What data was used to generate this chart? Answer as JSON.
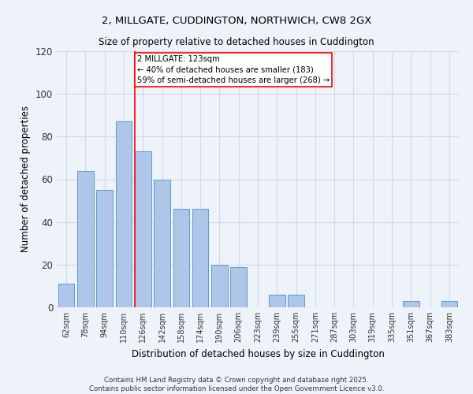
{
  "title_line1": "2, MILLGATE, CUDDINGTON, NORTHWICH, CW8 2GX",
  "title_line2": "Size of property relative to detached houses in Cuddington",
  "xlabel": "Distribution of detached houses by size in Cuddington",
  "ylabel": "Number of detached properties",
  "categories": [
    "62sqm",
    "78sqm",
    "94sqm",
    "110sqm",
    "126sqm",
    "142sqm",
    "158sqm",
    "174sqm",
    "190sqm",
    "206sqm",
    "223sqm",
    "239sqm",
    "255sqm",
    "271sqm",
    "287sqm",
    "303sqm",
    "319sqm",
    "335sqm",
    "351sqm",
    "367sqm",
    "383sqm"
  ],
  "values": [
    11,
    64,
    55,
    87,
    73,
    60,
    46,
    46,
    20,
    19,
    0,
    6,
    6,
    0,
    0,
    0,
    0,
    0,
    3,
    0,
    3
  ],
  "bar_color": "#aec6e8",
  "bar_edge_color": "#5b9bd5",
  "grid_color": "#d0d8e8",
  "background_color": "#eef2f9",
  "property_label": "2 MILLGATE: 123sqm",
  "annotation_text_line1": "← 40% of detached houses are smaller (183)",
  "annotation_text_line2": "59% of semi-detached houses are larger (268) →",
  "footer_line1": "Contains HM Land Registry data © Crown copyright and database right 2025.",
  "footer_line2": "Contains public sector information licensed under the Open Government Licence v3.0.",
  "ylim": [
    0,
    120
  ],
  "yticks": [
    0,
    20,
    40,
    60,
    80,
    100,
    120
  ],
  "red_line_index": 3.575
}
